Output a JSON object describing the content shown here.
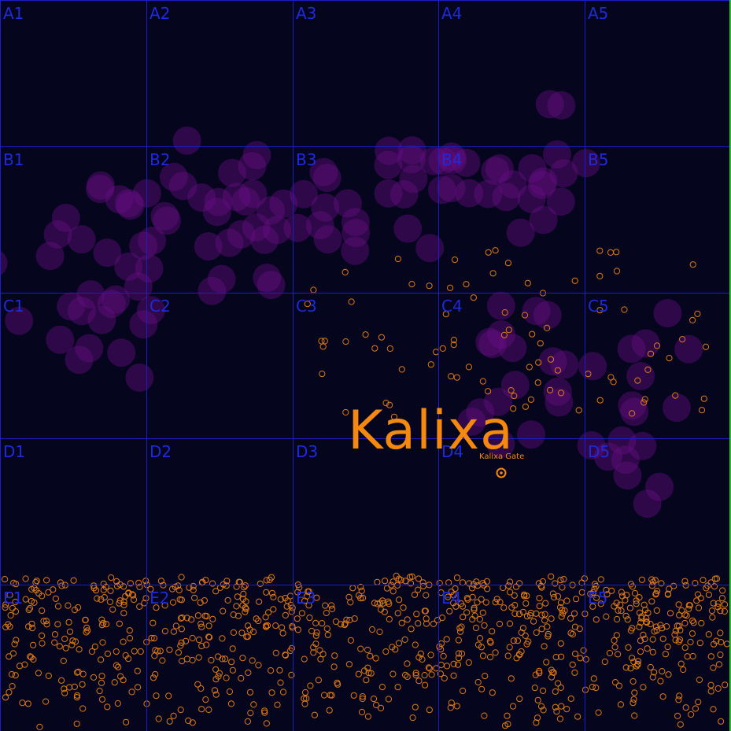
{
  "map": {
    "sector_name": "Kalixa",
    "grid": {
      "rows": [
        "A",
        "B",
        "C",
        "D",
        "E"
      ],
      "cols": [
        1,
        2,
        3,
        4,
        5
      ],
      "cell_labels": [
        "A1",
        "A2",
        "A3",
        "A4",
        "A5",
        "B1",
        "B2",
        "B3",
        "B4",
        "B5",
        "C1",
        "C2",
        "C3",
        "C4",
        "C5",
        "D1",
        "D2",
        "D3",
        "D4",
        "D5",
        "E1",
        "E2",
        "E3",
        "E4",
        "E5"
      ]
    },
    "gate": {
      "label": "Kalixa Gate",
      "icon": "gate-icon"
    },
    "colors": {
      "background": "#05051d",
      "grid_line": "#1a1fc4",
      "grid_label": "#1f2ad9",
      "nebula": "#6a0f86",
      "asteroid": "#e07a12",
      "sector_text": "#f5890f",
      "border": "#22c42a"
    },
    "features": {
      "nebula": "nebula-clouds",
      "asteroid_field": "asteroid-field"
    }
  }
}
